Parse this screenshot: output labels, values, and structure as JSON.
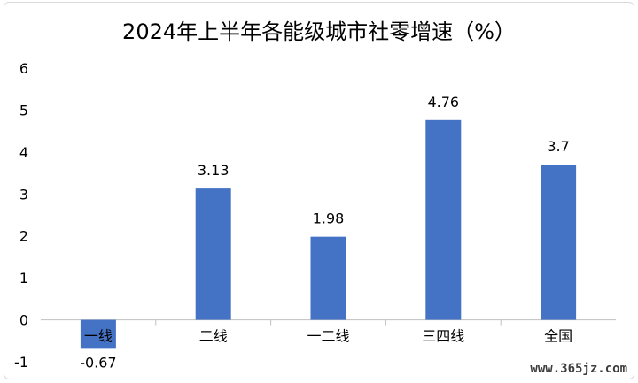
{
  "chart_data": {
    "type": "bar",
    "title": "2024年上半年各能级城市社零增速（%）",
    "categories": [
      "一线",
      "二线",
      "一二线",
      "三四线",
      "全国"
    ],
    "values": [
      -0.67,
      3.13,
      1.98,
      4.76,
      3.7
    ],
    "value_labels": [
      "-0.67",
      "3.13",
      "1.98",
      "4.76",
      "3.7"
    ],
    "y_ticks": [
      "-1",
      "0",
      "1",
      "2",
      "3",
      "4",
      "5",
      "6"
    ],
    "ylim": [
      -1,
      6
    ],
    "bar_color": "#4472c4",
    "grid": false,
    "legend": "none"
  },
  "watermark": "www.365jz.com"
}
